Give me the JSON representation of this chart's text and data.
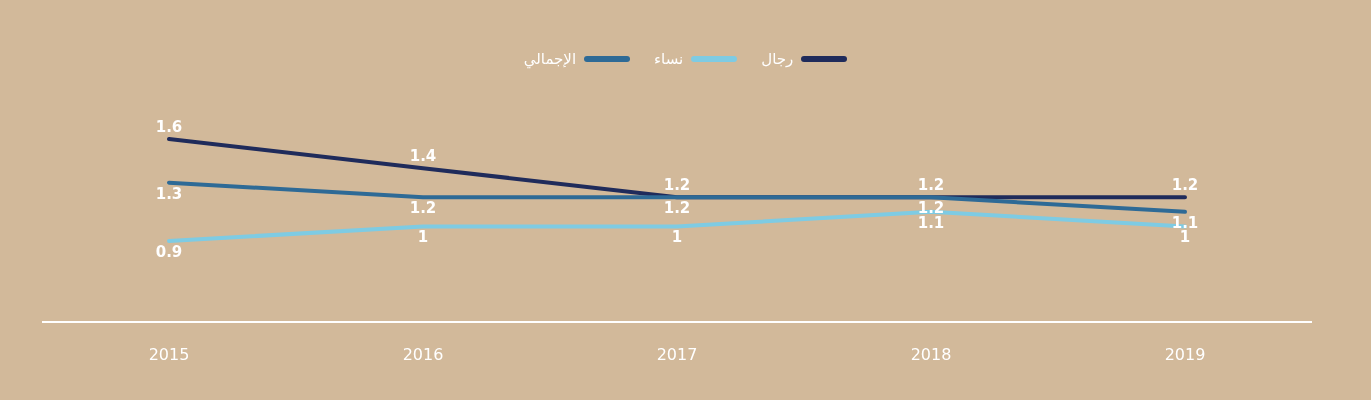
{
  "chart_data": {
    "type": "line",
    "categories": [
      "2015",
      "2016",
      "2017",
      "2018",
      "2019"
    ],
    "series": [
      {
        "name": "رجال",
        "color": "#1f2b5b",
        "values": [
          1.6,
          1.4,
          1.2,
          1.2,
          1.2
        ]
      },
      {
        "name": "نساء",
        "color": "#7ecbe3",
        "values": [
          0.9,
          1,
          1,
          1.1,
          1
        ]
      },
      {
        "name": "الإجمالي",
        "color": "#2e6a96",
        "values": [
          1.3,
          1.2,
          1.2,
          1.2,
          1.1
        ]
      }
    ],
    "data_labels": true,
    "legend": "top"
  }
}
